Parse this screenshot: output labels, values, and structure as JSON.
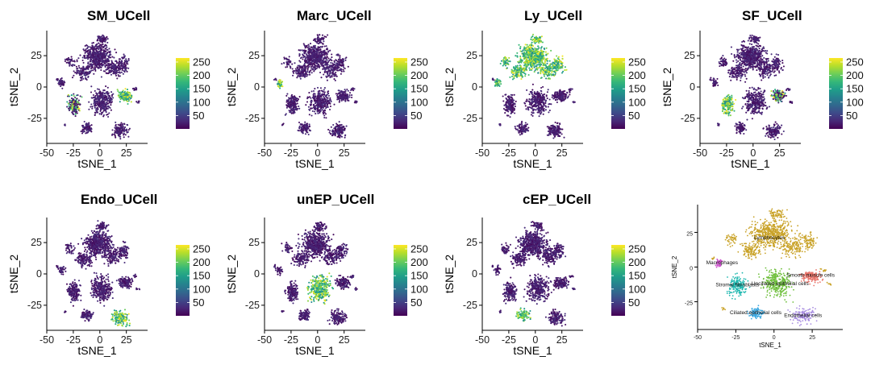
{
  "colors": {
    "viridis": [
      "#440154",
      "#482878",
      "#3e4989",
      "#31688e",
      "#26828e",
      "#1f9e89",
      "#35b779",
      "#6ece58",
      "#b5de2b",
      "#fde725"
    ],
    "background": "#ffffff"
  },
  "chart_data": [
    {
      "type": "scatter",
      "title": "SM_UCell",
      "xlabel": "tSNE_1",
      "ylabel": "tSNE_2",
      "xticks": [
        "-50",
        "-25",
        "0",
        "25"
      ],
      "yticks": [
        "25",
        "0",
        "-25"
      ],
      "xlim": [
        -50,
        45
      ],
      "ylim": [
        -45,
        45
      ],
      "legend": {
        "ticks": [
          "250",
          "200",
          "150",
          "100",
          "50"
        ],
        "range": [
          0,
          265
        ],
        "placement": "right"
      },
      "highlight": [
        "smooth",
        "stromal_spots"
      ]
    },
    {
      "type": "scatter",
      "title": "Marc_UCell",
      "xlabel": "tSNE_1",
      "ylabel": "tSNE_2",
      "xticks": [
        "-50",
        "-25",
        "0",
        "25"
      ],
      "yticks": [
        "25",
        "0",
        "-25"
      ],
      "xlim": [
        -50,
        45
      ],
      "ylim": [
        -45,
        45
      ],
      "legend": {
        "ticks": [
          "250",
          "200",
          "150",
          "100",
          "50"
        ],
        "range": [
          0,
          265
        ],
        "placement": "right"
      },
      "highlight": [
        "macrophage"
      ]
    },
    {
      "type": "scatter",
      "title": "Ly_UCell",
      "xlabel": "tSNE_1",
      "ylabel": "tSNE_2",
      "xticks": [
        "-50",
        "-25",
        "0",
        "25"
      ],
      "yticks": [
        "25",
        "0",
        "-25"
      ],
      "xlim": [
        -50,
        45
      ],
      "ylim": [
        -45,
        45
      ],
      "legend": {
        "ticks": [
          "250",
          "200",
          "150",
          "100",
          "50"
        ],
        "range": [
          0,
          265
        ],
        "placement": "right"
      },
      "highlight": [
        "lymph",
        "macrophage"
      ]
    },
    {
      "type": "scatter",
      "title": "SF_UCell",
      "xlabel": "tSNE_1",
      "ylabel": "tSNE_2",
      "xticks": [
        "-50",
        "-25",
        "0",
        "25"
      ],
      "yticks": [
        "25",
        "0",
        "-25"
      ],
      "xlim": [
        -50,
        45
      ],
      "ylim": [
        -45,
        45
      ],
      "legend": {
        "ticks": [
          "250",
          "200",
          "150",
          "100",
          "50"
        ],
        "range": [
          0,
          265
        ],
        "placement": "right"
      },
      "highlight": [
        "stromal",
        "smooth_part"
      ]
    },
    {
      "type": "scatter",
      "title": "Endo_UCell",
      "xlabel": "tSNE_1",
      "ylabel": "tSNE_2",
      "xticks": [
        "-50",
        "-25",
        "0",
        "25"
      ],
      "yticks": [
        "25",
        "0",
        "-25"
      ],
      "xlim": [
        -50,
        45
      ],
      "ylim": [
        -45,
        45
      ],
      "legend": {
        "ticks": [
          "250",
          "200",
          "150",
          "100",
          "50"
        ],
        "range": [
          0,
          265
        ],
        "placement": "right"
      },
      "highlight": [
        "endothelial"
      ]
    },
    {
      "type": "scatter",
      "title": "unEP_UCell",
      "xlabel": "tSNE_1",
      "ylabel": "tSNE_2",
      "xticks": [
        "-50",
        "-25",
        "0",
        "25"
      ],
      "yticks": [
        "25",
        "0",
        "-25"
      ],
      "xlim": [
        -50,
        45
      ],
      "ylim": [
        -45,
        45
      ],
      "legend": {
        "ticks": [
          "250",
          "200",
          "150",
          "100",
          "50"
        ],
        "range": [
          0,
          265
        ],
        "placement": "right"
      },
      "highlight": [
        "unciliated"
      ]
    },
    {
      "type": "scatter",
      "title": "cEP_UCell",
      "xlabel": "tSNE_1",
      "ylabel": "tSNE_2",
      "xticks": [
        "-50",
        "-25",
        "0",
        "25"
      ],
      "yticks": [
        "25",
        "0",
        "-25"
      ],
      "xlim": [
        -50,
        45
      ],
      "ylim": [
        -45,
        45
      ],
      "legend": {
        "ticks": [
          "250",
          "200",
          "150",
          "100",
          "50"
        ],
        "range": [
          0,
          265
        ],
        "placement": "right"
      },
      "highlight": [
        "ciliated"
      ]
    },
    {
      "type": "scatter",
      "title": "",
      "xlabel": "tSNE_1",
      "ylabel": "tSNE_2",
      "xticks": [
        "-50",
        "-25",
        "0",
        "25"
      ],
      "yticks": [
        "25",
        "0",
        "-25"
      ],
      "xlim": [
        -50,
        45
      ],
      "ylim": [
        -45,
        45
      ],
      "clusters": [
        {
          "label": "Lymphocytes",
          "x": -3,
          "y": 20,
          "color": "#c9a227"
        },
        {
          "label": "Macrophages",
          "x": -34,
          "y": 2,
          "color": "#cc4fcc"
        },
        {
          "label": "Smooth muscle cells",
          "x": 24,
          "y": -7,
          "color": "#e8736a"
        },
        {
          "label": "Stromal fibroblasts",
          "x": -24,
          "y": -14,
          "color": "#1fb8b0"
        },
        {
          "label": "Unciliated epithelial cells",
          "x": 4,
          "y": -13,
          "color": "#6ebf3c"
        },
        {
          "label": "Ciliated epithelial cells",
          "x": -12,
          "y": -34,
          "color": "#39a7e0"
        },
        {
          "label": "Endothelial cells",
          "x": 19,
          "y": -36,
          "color": "#a78ce0"
        }
      ]
    }
  ]
}
